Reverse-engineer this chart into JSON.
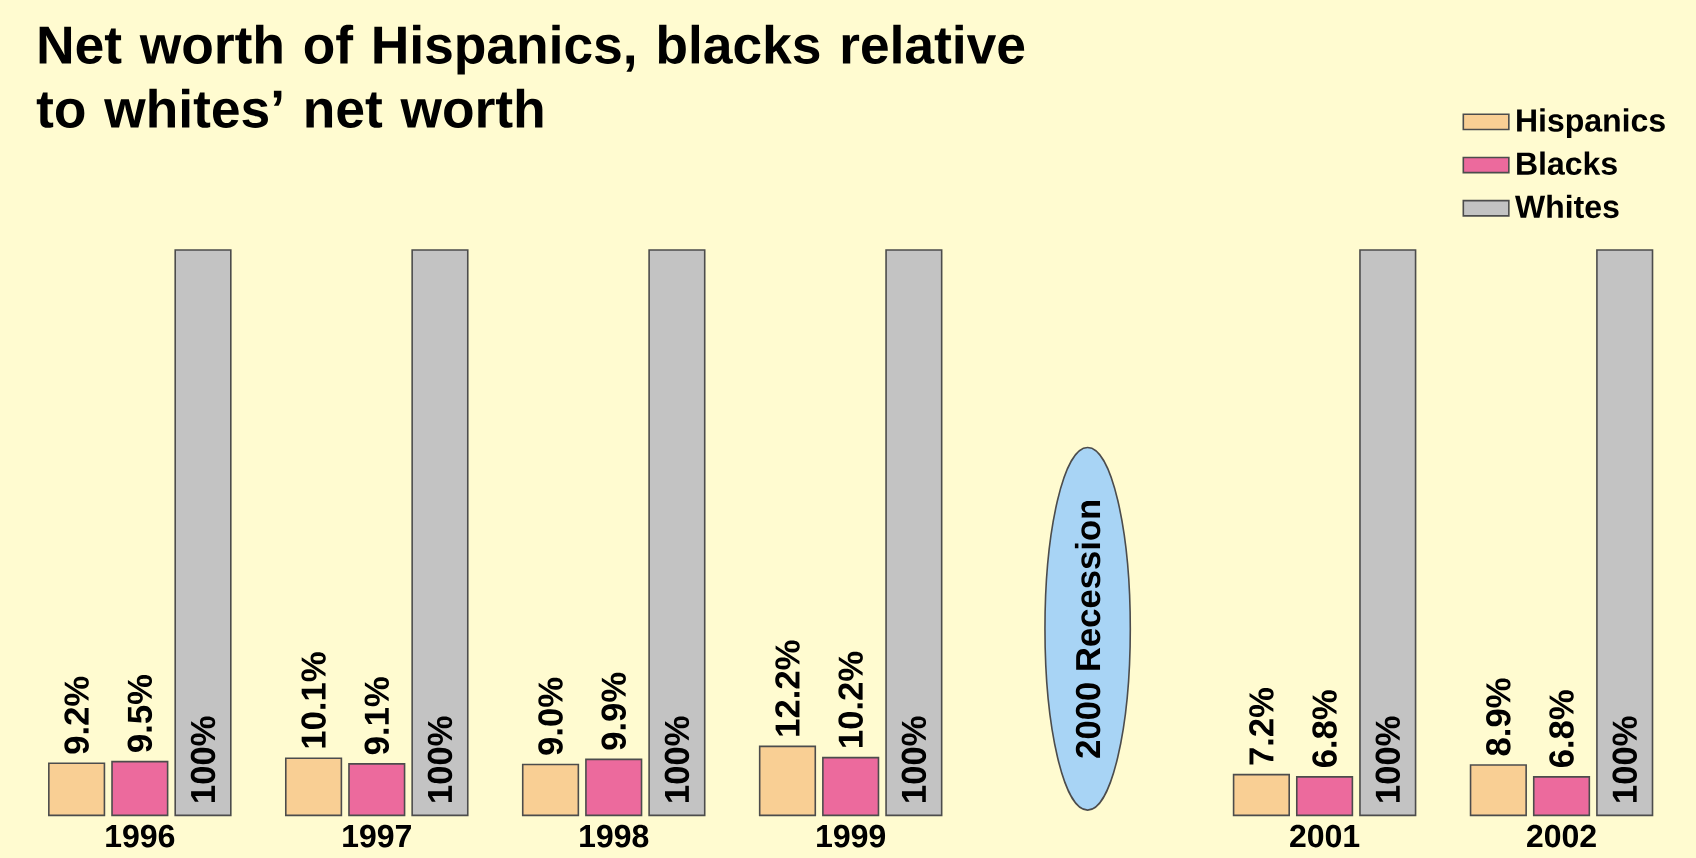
{
  "chart_data": {
    "type": "bar",
    "title": "Net worth of Hispanics, blacks relative to whites’ net worth",
    "categories": [
      "1996",
      "1997",
      "1998",
      "1999",
      null,
      "2001",
      "2002"
    ],
    "series": [
      {
        "name": "Hispanics",
        "color": "#f9cf94",
        "values": [
          9.2,
          10.1,
          9.0,
          12.2,
          null,
          7.2,
          8.9
        ],
        "value_labels": [
          "9.2%",
          "10.1%",
          "9.0%",
          "12.2%",
          null,
          "7.2%",
          "8.9%"
        ]
      },
      {
        "name": "Blacks",
        "color": "#ec6a9d",
        "values": [
          9.5,
          9.1,
          9.9,
          10.2,
          null,
          6.8,
          6.8
        ],
        "value_labels": [
          "9.5%",
          "9.1%",
          "9.9%",
          "10.2%",
          null,
          "6.8%",
          "6.8%"
        ]
      },
      {
        "name": "Whites",
        "color": "#c3c3c3",
        "values": [
          100,
          100,
          100,
          100,
          null,
          100,
          100
        ],
        "value_labels": [
          "100%",
          "100%",
          "100%",
          "100%",
          null,
          "100%",
          "100%"
        ]
      }
    ],
    "ylim": [
      0,
      100
    ],
    "tick_labels": "x",
    "legend": "top right",
    "annotations": [
      "2000 Recession"
    ]
  }
}
